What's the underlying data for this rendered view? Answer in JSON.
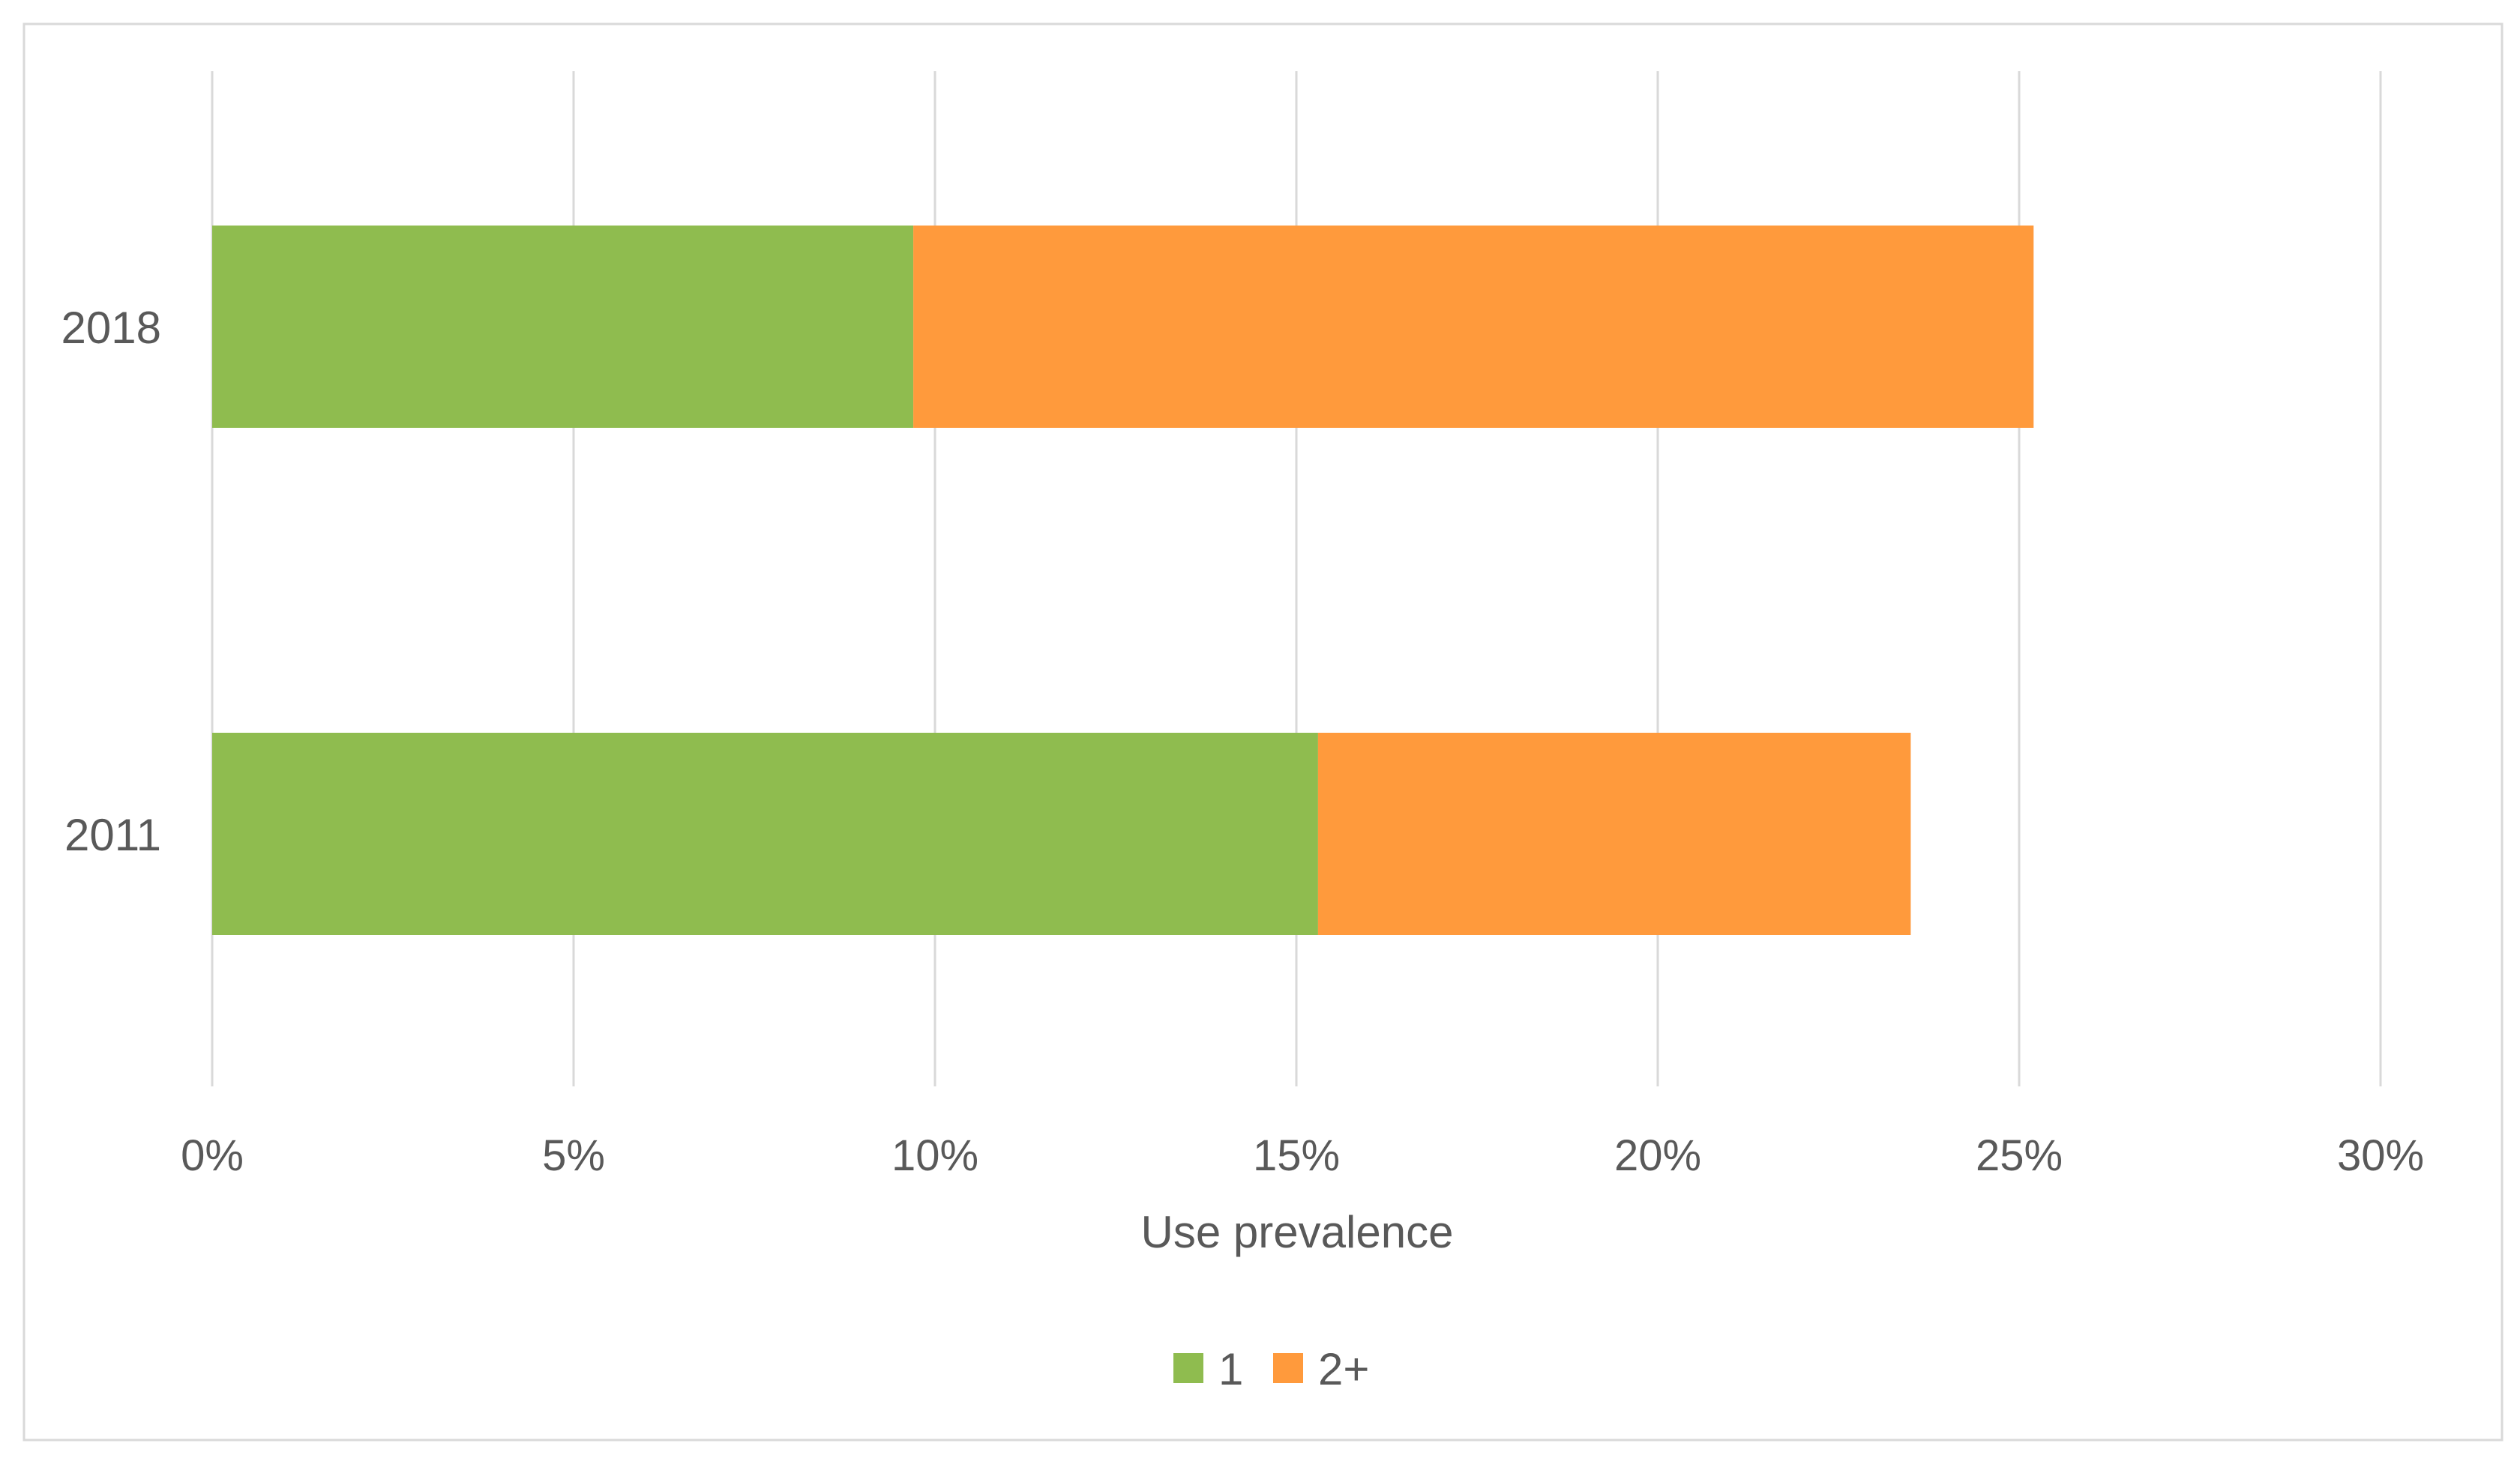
{
  "chart_data": {
    "type": "bar",
    "orientation": "horizontal",
    "stacked": true,
    "categories": [
      "2018",
      "2011"
    ],
    "series": [
      {
        "name": "1",
        "values": [
          9.7,
          15.3
        ],
        "color": "#8FBC4F"
      },
      {
        "name": "2+",
        "values": [
          15.5,
          8.2
        ],
        "color": "#FF9A3C"
      }
    ],
    "x_ticks": [
      "0%",
      "5%",
      "10%",
      "15%",
      "20%",
      "25%",
      "30%"
    ],
    "x_tick_values": [
      0,
      5,
      10,
      15,
      20,
      25,
      30
    ],
    "xlim": [
      0,
      30
    ],
    "xlabel": "Use prevalence",
    "ylabel": "",
    "title": "",
    "grid": "vertical",
    "legend_position": "bottom",
    "colors": {
      "grid": "#D9D9D9",
      "text": "#595959",
      "border": "#D9D9D9",
      "background": "#FFFFFF"
    }
  }
}
